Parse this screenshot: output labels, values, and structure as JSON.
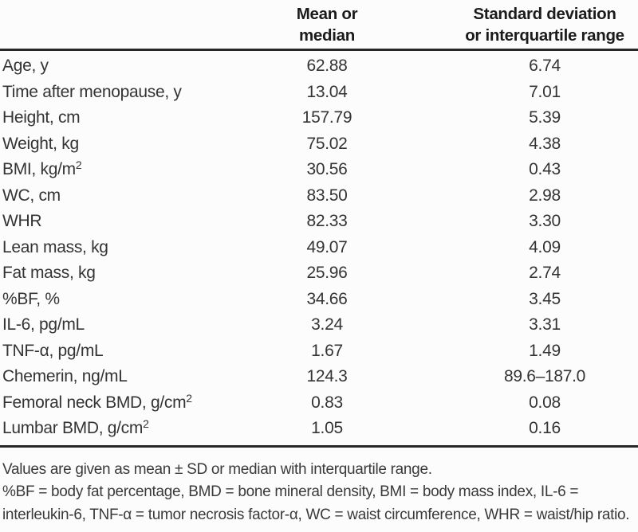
{
  "colors": {
    "background": "#fcfcfc",
    "rule": "#272727",
    "header_text": "#1b1b1b",
    "body_text": "#343434"
  },
  "table": {
    "header": {
      "stub": "",
      "mean_label": "Mean or\nmedian",
      "sd_label": "Standard deviation\nor interquartile range"
    },
    "rows": [
      {
        "label": "Age, y",
        "mean": "62.88",
        "sd": "6.74"
      },
      {
        "label": "Time after menopause, y",
        "mean": "13.04",
        "sd": "7.01"
      },
      {
        "label": "Height, cm",
        "mean": "157.79",
        "sd": "5.39"
      },
      {
        "label": "Weight, kg",
        "mean": "75.02",
        "sd": "4.38"
      },
      {
        "label": "BMI, kg/m",
        "sup": "2",
        "mean": "30.56",
        "sd": "0.43"
      },
      {
        "label": "WC, cm",
        "mean": "83.50",
        "sd": "2.98"
      },
      {
        "label": "WHR",
        "mean": "82.33",
        "sd": "3.30"
      },
      {
        "label": "Lean mass, kg",
        "mean": "49.07",
        "sd": "4.09"
      },
      {
        "label": "Fat mass, kg",
        "mean": "25.96",
        "sd": "2.74"
      },
      {
        "label": "%BF, %",
        "mean": "34.66",
        "sd": "3.45"
      },
      {
        "label": "IL-6, pg/mL",
        "mean": "3.24",
        "sd": "3.31"
      },
      {
        "label": "TNF-α, pg/mL",
        "mean": "1.67",
        "sd": "1.49"
      },
      {
        "label": "Chemerin, ng/mL",
        "mean": "124.3",
        "sd": "89.6–187.0"
      },
      {
        "label": "Femoral neck BMD, g/cm",
        "sup": "2",
        "mean": "0.83",
        "sd": "0.08"
      },
      {
        "label": "Lumbar BMD, g/cm",
        "sup": "2",
        "mean": "1.05",
        "sd": "0.16"
      }
    ]
  },
  "footnotes": [
    "Values are given as mean ± SD or median with interquartile range.",
    "%BF = body fat percentage, BMD = bone mineral density, BMI = body mass index, IL-6 = interleukin-6, TNF-α = tumor necrosis factor-α, WC = waist circumference, WHR = waist/hip ratio."
  ]
}
